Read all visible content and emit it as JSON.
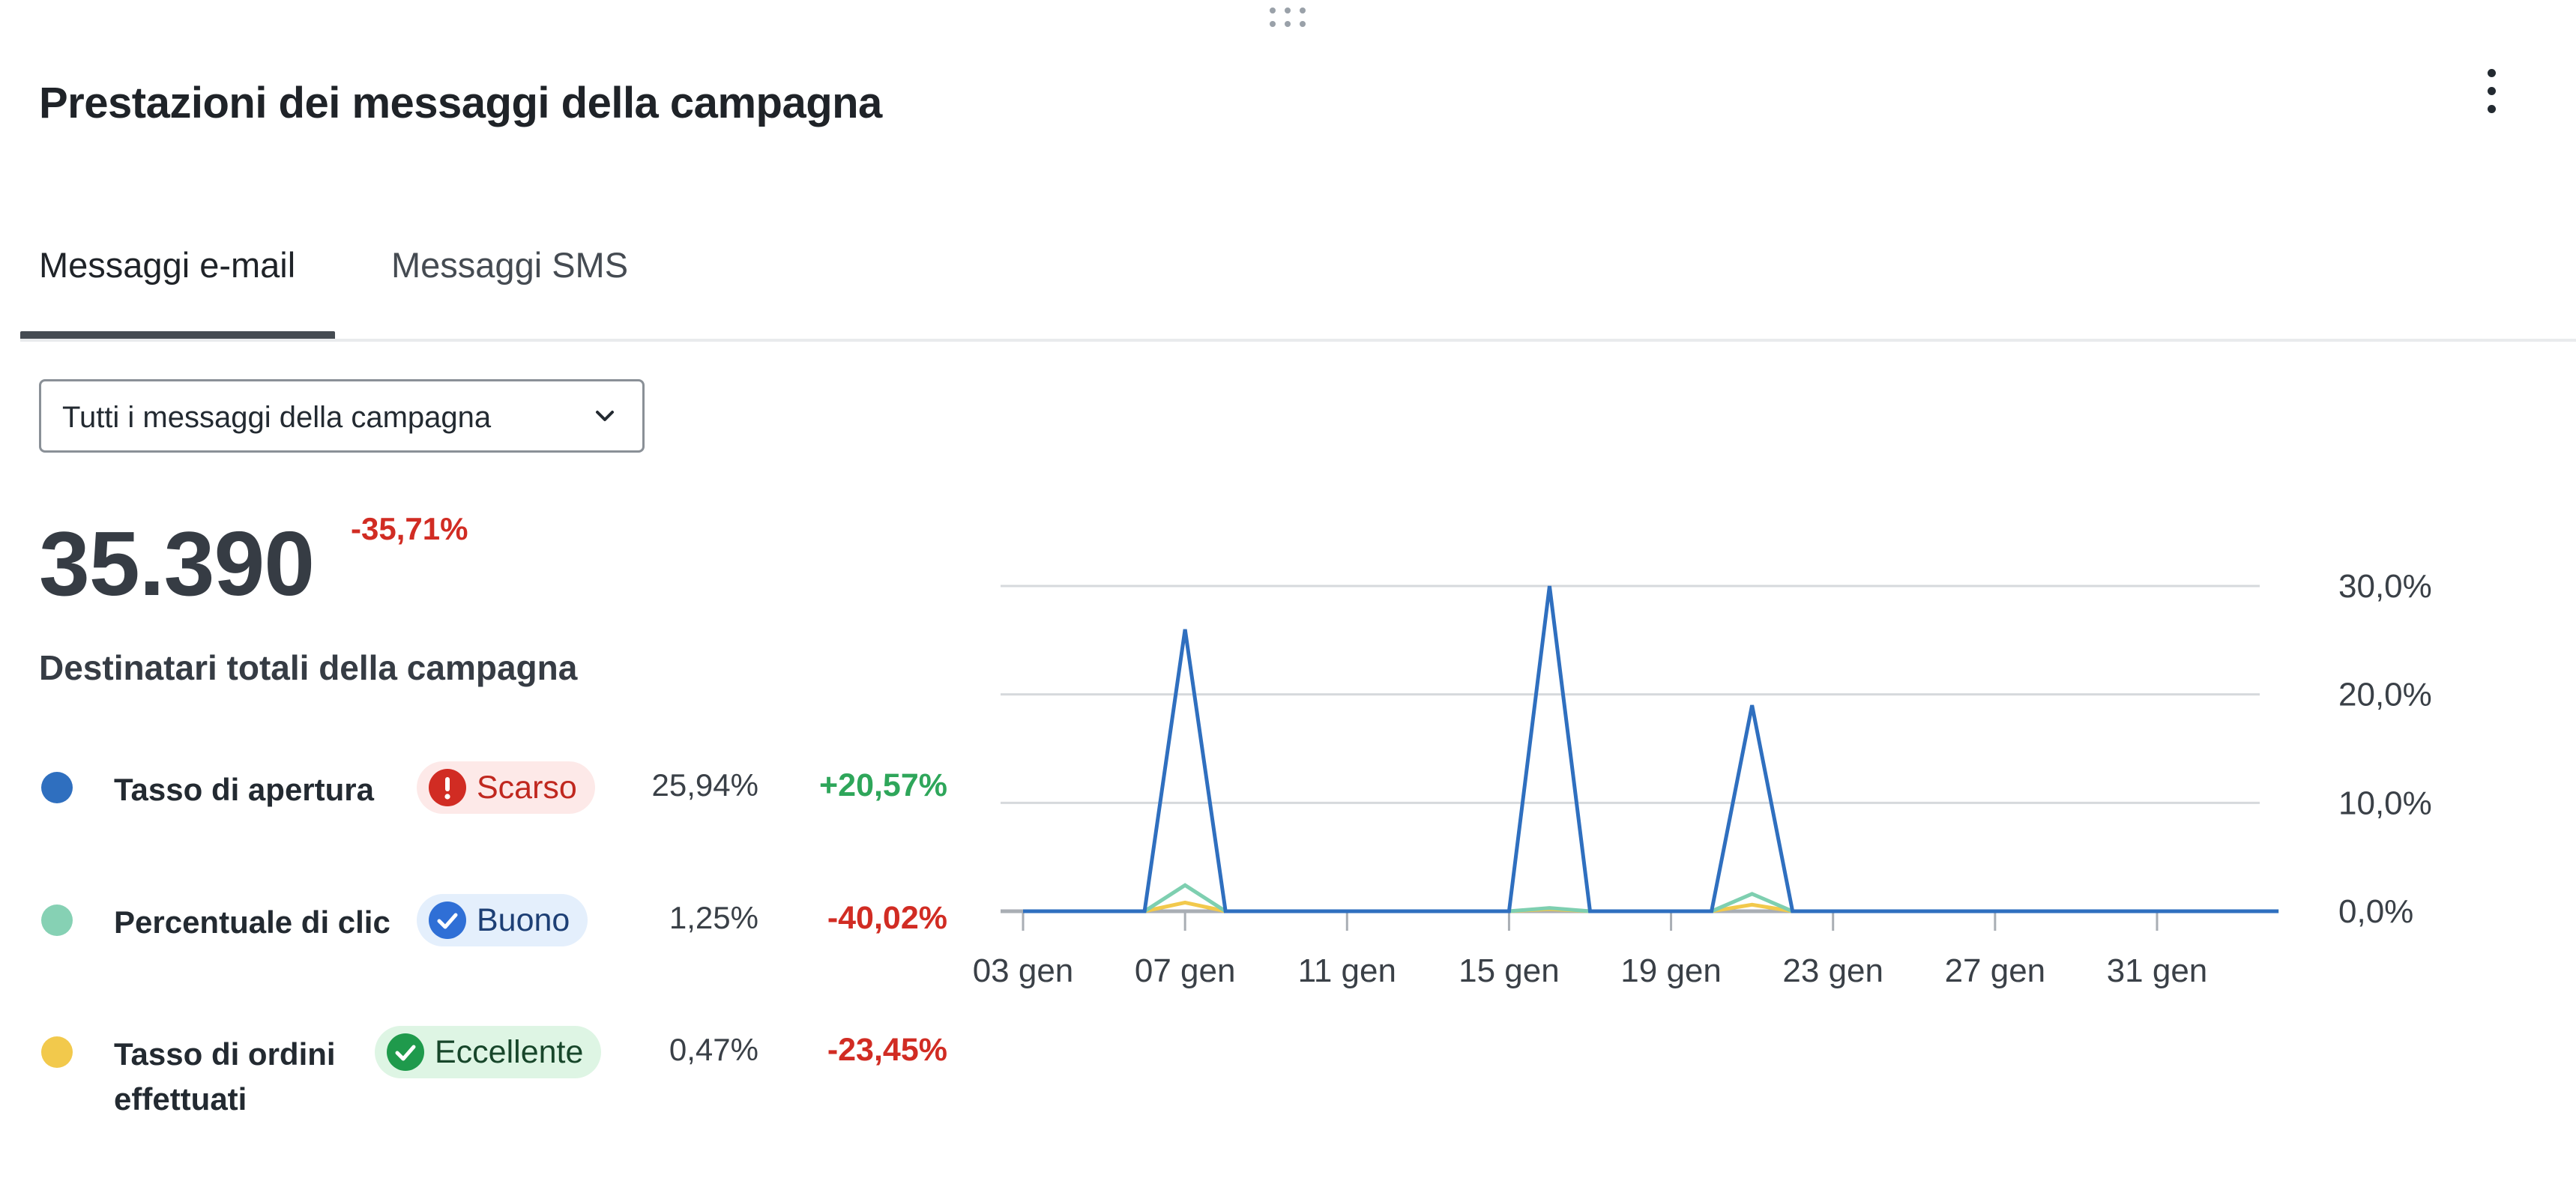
{
  "widget": {
    "title": "Prestazioni dei messaggi della campagna",
    "more_icon": "kebab-menu-icon",
    "drag_icon": "drag-handle-icon"
  },
  "tabs": [
    {
      "label": "Messaggi e-mail",
      "selected": true
    },
    {
      "label": "Messaggi SMS",
      "selected": false
    }
  ],
  "filter": {
    "selected": "Tutti i messaggi della campagna",
    "icon": "chevron-down-icon"
  },
  "summary": {
    "value": "35.390",
    "delta": "-35,71%",
    "label": "Destinatari totali della campagna"
  },
  "metrics": [
    {
      "label": "Tasso di apertura",
      "dot_color": "#2f6fbf",
      "badge": {
        "text": "Scarso",
        "icon": "alert-icon",
        "bg": "#fde9e8",
        "icon_color": "#d12c23",
        "text_color": "#c0281f"
      },
      "value": "25,94%",
      "delta": "+20,57%",
      "delta_color": "#2ea65a"
    },
    {
      "label": "Percentuale di clic",
      "dot_color": "#86d1b4",
      "badge": {
        "text": "Buono",
        "icon": "check-circle-icon",
        "bg": "#e4effc",
        "icon_color": "#2f6fd6",
        "text_color": "#1d3f75"
      },
      "value": "1,25%",
      "delta": "-40,02%",
      "delta_color": "#d12c23"
    },
    {
      "label": "Tasso di ordini effettuati",
      "dot_color": "#f2c94c",
      "badge": {
        "text": "Eccellente",
        "icon": "check-circle-icon",
        "bg": "#def5e4",
        "icon_color": "#1f9a4c",
        "text_color": "#17462a"
      },
      "value": "0,47%",
      "delta": "-23,45%",
      "delta_color": "#d12c23"
    }
  ],
  "chart_data": {
    "type": "line",
    "x_tick_labels": [
      "03 gen",
      "07 gen",
      "11 gen",
      "15 gen",
      "19 gen",
      "23 gen",
      "27 gen",
      "31 gen"
    ],
    "y_tick_labels": [
      "0,0%",
      "10,0%",
      "20,0%",
      "30,0%"
    ],
    "ylim": [
      0,
      30
    ],
    "y_axis_side": "right",
    "grid": true,
    "legend": "none",
    "x": [
      "03 gen",
      "04 gen",
      "05 gen",
      "06 gen",
      "07 gen",
      "08 gen",
      "09 gen",
      "10 gen",
      "11 gen",
      "12 gen",
      "13 gen",
      "14 gen",
      "15 gen",
      "16 gen",
      "17 gen",
      "18 gen",
      "19 gen",
      "20 gen",
      "21 gen",
      "22 gen",
      "23 gen",
      "24 gen",
      "25 gen",
      "26 gen",
      "27 gen",
      "28 gen",
      "29 gen",
      "30 gen",
      "31 gen",
      "01 feb",
      "02 feb",
      "03 feb"
    ],
    "series": [
      {
        "color": "#2f6fbf",
        "values": [
          0,
          0,
          0,
          0,
          26,
          0,
          0,
          0,
          0,
          0,
          0,
          0,
          0,
          30,
          0,
          0,
          0,
          0,
          19,
          0,
          0,
          0,
          0,
          0,
          0,
          0,
          0,
          0,
          0,
          0,
          0,
          0
        ]
      },
      {
        "color": "#7ecfb0",
        "values": [
          0,
          0,
          0,
          0,
          2.4,
          0,
          0,
          0,
          0,
          0,
          0,
          0,
          0,
          0.3,
          0,
          0,
          0,
          0,
          1.6,
          0,
          0,
          0,
          0,
          0,
          0,
          0,
          0,
          0,
          0,
          0,
          0,
          0
        ]
      },
      {
        "color": "#f2c94c",
        "values": [
          0,
          0,
          0,
          0,
          0.8,
          0,
          0,
          0,
          0,
          0,
          0,
          0,
          0,
          0.2,
          0,
          0,
          0,
          0,
          0.6,
          0,
          0,
          0,
          0,
          0,
          0,
          0,
          0,
          0,
          0,
          0,
          0,
          0
        ]
      }
    ]
  }
}
